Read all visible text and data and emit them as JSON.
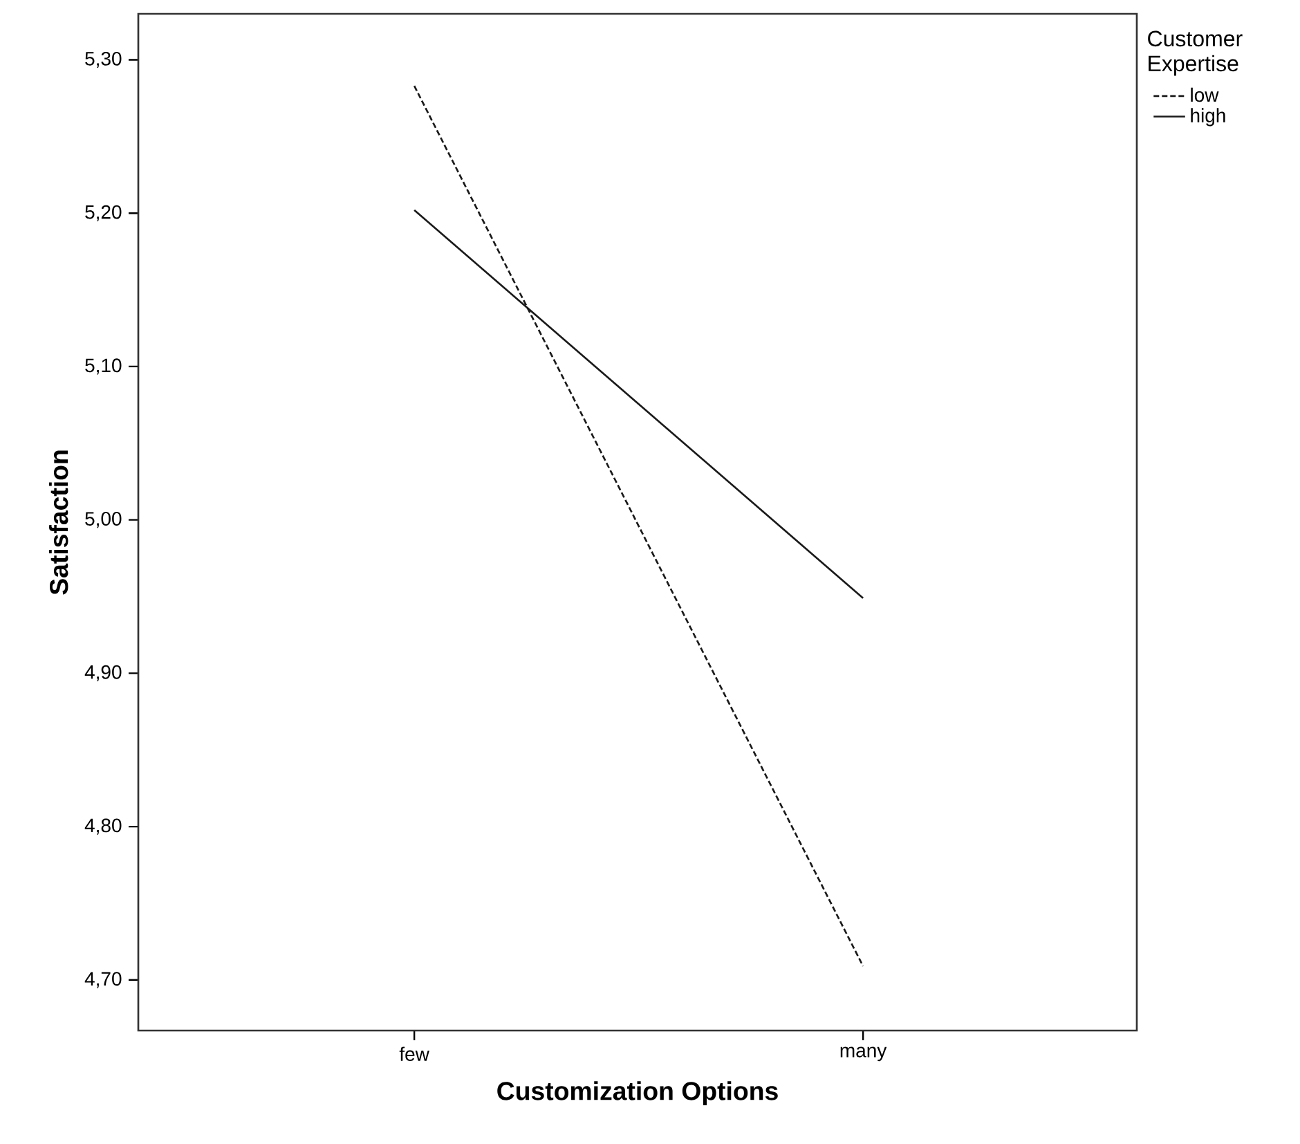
{
  "chart_data": {
    "type": "line",
    "xlabel": "Customization Options",
    "ylabel": "Satisfaction",
    "legend_title": "Customer Expertise",
    "categories": [
      "few",
      "many"
    ],
    "series": [
      {
        "name": "low",
        "color": "#1a1a1a",
        "line_style": "dashed",
        "values": [
          5.283,
          4.709
        ]
      },
      {
        "name": "high",
        "color": "#1a1a1a",
        "line_style": "solid",
        "values": [
          5.202,
          4.949
        ]
      }
    ],
    "ylim": [
      4.667,
      5.33
    ],
    "yticks": [
      {
        "value": 4.7,
        "label": "4,70"
      },
      {
        "value": 4.8,
        "label": "4,80"
      },
      {
        "value": 4.9,
        "label": "4,90"
      },
      {
        "value": 5.0,
        "label": "5,00"
      },
      {
        "value": 5.1,
        "label": "5,10"
      },
      {
        "value": 5.2,
        "label": "5,20"
      },
      {
        "value": 5.3,
        "label": "5,30"
      }
    ],
    "grid": false,
    "legend": "top right",
    "marker": "none"
  }
}
